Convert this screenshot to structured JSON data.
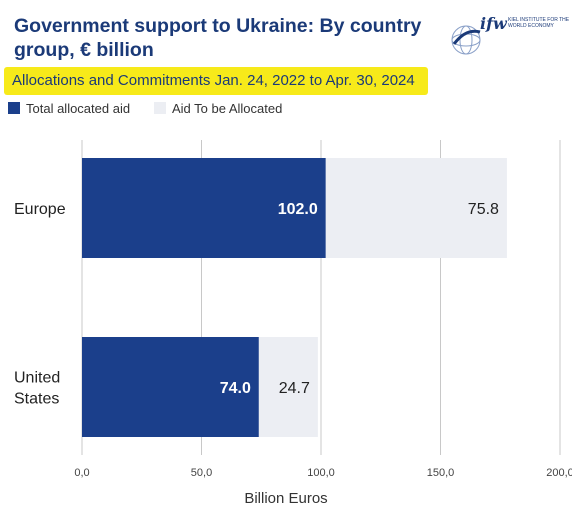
{
  "header": {
    "title": "Government support to Ukraine: By country group, € billion",
    "subtitle": "Allocations and Commitments Jan. 24, 2022 to Apr. 30, 2024"
  },
  "logo": {
    "mark": "ifw",
    "institute": "KIEL INSTITUTE FOR THE WORLD ECONOMY"
  },
  "colors": {
    "allocated": "#1b3f8b",
    "to_be_allocated": "#eceef3",
    "highlight": "#f7ea1a",
    "title": "#1b3a78"
  },
  "chart_data": {
    "type": "bar",
    "orientation": "horizontal",
    "stacked": true,
    "categories": [
      "Europe",
      "United\nStates"
    ],
    "series": [
      {
        "name": "Total allocated aid",
        "values": [
          102.0,
          74.0
        ],
        "labels": [
          "102.0",
          "74.0"
        ]
      },
      {
        "name": "Aid To be Allocated",
        "values": [
          75.8,
          24.7
        ],
        "labels": [
          "75.8",
          "24.7"
        ]
      }
    ],
    "xlabel": "Billion Euros",
    "xlim": [
      0,
      200
    ],
    "xticks": [
      "0,0",
      "50,0",
      "100,0",
      "150,0",
      "200,0"
    ],
    "xtick_values": [
      0,
      50,
      100,
      150,
      200
    ],
    "grid": "vertical",
    "legend": "top-left"
  }
}
